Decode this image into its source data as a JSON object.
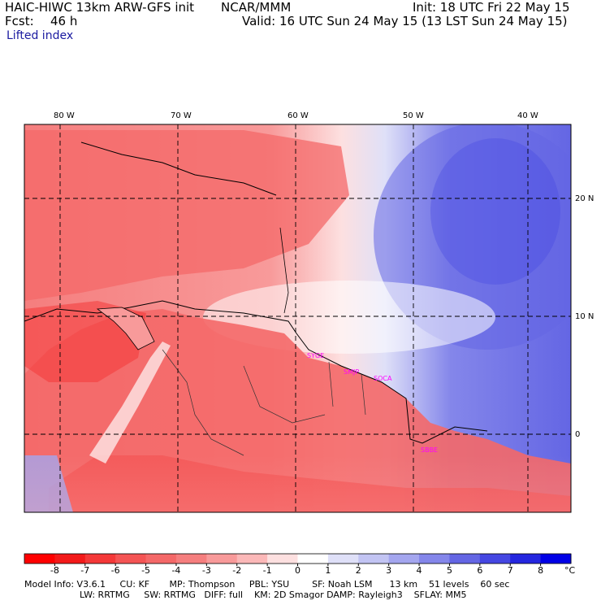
{
  "header": {
    "model_line": "HAIC-HIWC 13km ARW-GFS init",
    "org": "NCAR/MMM",
    "init": "Init: 18 UTC Fri 22 May 15",
    "fcst_label": "Fcst:",
    "fcst_value": "46 h",
    "valid": "Valid: 16 UTC Sun 24 May 15 (13 LST Sun 24 May 15)",
    "field": "Lifted index"
  },
  "map": {
    "lon_labels": [
      "80 W",
      "70 W",
      "60 W",
      "50 W",
      "40 W"
    ],
    "lat_labels": [
      "20 N",
      "10 N",
      "0"
    ],
    "stations": [
      "SYGE",
      "SMJP",
      "SOCA",
      "SBBE"
    ]
  },
  "colorbar": {
    "ticks": [
      "-8",
      "-7",
      "-6",
      "-5",
      "-4",
      "-3",
      "-2",
      "-1",
      "0",
      "1",
      "2",
      "3",
      "4",
      "5",
      "6",
      "7",
      "8"
    ],
    "unit": "°C",
    "colors": [
      "#ff0000",
      "#f31a1a",
      "#f43838",
      "#f45454",
      "#f46868",
      "#f57e7e",
      "#f89a9a",
      "#fbb8b8",
      "#fde0e0",
      "#ffffff",
      "#dfe0f8",
      "#c2c4f3",
      "#a4a6ef",
      "#8486ea",
      "#6466e4",
      "#4547e2",
      "#2426df",
      "#0000e6"
    ]
  },
  "footer": {
    "line1": "Model Info: V3.6.1     CU: KF       MP: Thompson     PBL: YSU        SF: Noah LSM      13 km    51 levels    60 sec",
    "line2": "LW: RRTMG     SW: RRTMG   DIFF: full    KM: 2D Smagor DAMP: Rayleigh3    SFLAY: MM5"
  }
}
